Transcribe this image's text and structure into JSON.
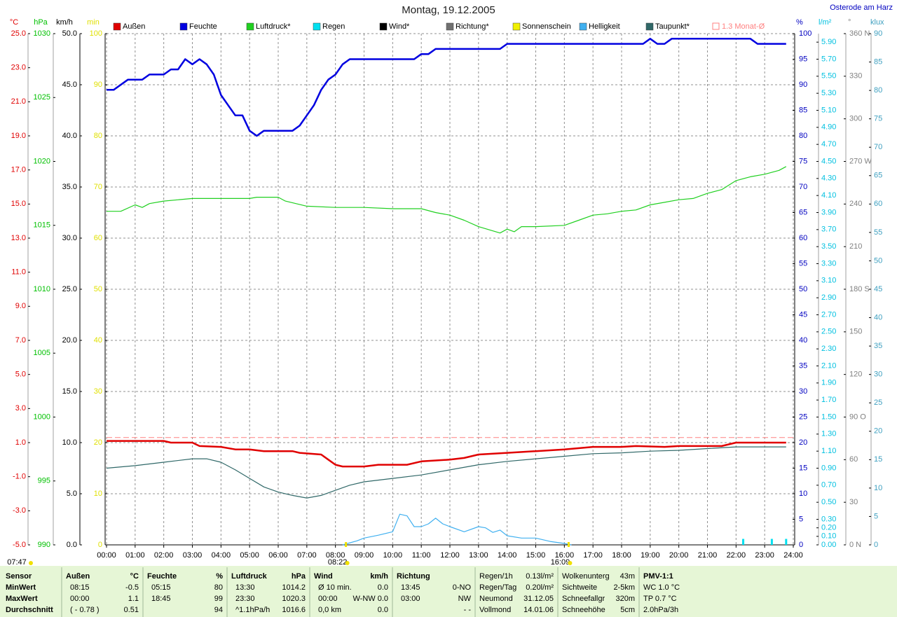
{
  "header": {
    "title": "Montag, 19.12.2005",
    "location": "Osterode am Harz"
  },
  "chart_data": {
    "type": "line",
    "grid": true,
    "xlim": [
      0,
      24
    ],
    "xticks": [
      {
        "value": 0,
        "label": "00:00"
      },
      {
        "value": 1,
        "label": "01:00"
      },
      {
        "value": 2,
        "label": "02:00"
      },
      {
        "value": 3,
        "label": "03:00"
      },
      {
        "value": 4,
        "label": "04:00"
      },
      {
        "value": 5,
        "label": "05:00"
      },
      {
        "value": 6,
        "label": "06:00"
      },
      {
        "value": 7,
        "label": "07:00"
      },
      {
        "value": 8,
        "label": "08:00"
      },
      {
        "value": 9,
        "label": "09:00"
      },
      {
        "value": 10,
        "label": "10:00"
      },
      {
        "value": 11,
        "label": "11:00"
      },
      {
        "value": 12,
        "label": "12:00"
      },
      {
        "value": 13,
        "label": "13:00"
      },
      {
        "value": 14,
        "label": "14:00"
      },
      {
        "value": 15,
        "label": "15:00"
      },
      {
        "value": 16,
        "label": "16:00"
      },
      {
        "value": 17,
        "label": "17:00"
      },
      {
        "value": 18,
        "label": "18:00"
      },
      {
        "value": 19,
        "label": "19:00"
      },
      {
        "value": 20,
        "label": "20:00"
      },
      {
        "value": 21,
        "label": "21:00"
      },
      {
        "value": 22,
        "label": "22:00"
      },
      {
        "value": 23,
        "label": "23:00"
      },
      {
        "value": 24,
        "label": "24:00"
      }
    ],
    "axes": {
      "temp": {
        "label": "°C",
        "color": "#e00000",
        "lim": [
          -5,
          25
        ],
        "ticks": [
          {
            "value": 25,
            "label": "25.0"
          },
          {
            "value": 23,
            "label": "23.0"
          },
          {
            "value": 21,
            "label": "21.0"
          },
          {
            "value": 19,
            "label": "19.0"
          },
          {
            "value": 17,
            "label": "17.0"
          },
          {
            "value": 15,
            "label": "15.0"
          },
          {
            "value": 13,
            "label": "13.0"
          },
          {
            "value": 11,
            "label": "11.0"
          },
          {
            "value": 9,
            "label": "9.0"
          },
          {
            "value": 7,
            "label": "7.0"
          },
          {
            "value": 5,
            "label": "5.0"
          },
          {
            "value": 3,
            "label": "3.0"
          },
          {
            "value": 1,
            "label": "1.0"
          },
          {
            "value": -1,
            "label": "-1.0"
          },
          {
            "value": -3,
            "label": "-3.0"
          },
          {
            "value": -5,
            "label": "-5.0"
          }
        ]
      },
      "press": {
        "label": "hPa",
        "color": "#00c000",
        "lim": [
          990,
          1030
        ],
        "ticks": [
          1030,
          1025,
          1020,
          1015,
          1010,
          1005,
          1000,
          995,
          990
        ]
      },
      "wind": {
        "label": "km/h",
        "color": "#000000",
        "lim": [
          0,
          50
        ],
        "ticks": [
          {
            "value": 50,
            "label": "50.0"
          },
          {
            "value": 45,
            "label": "45.0"
          },
          {
            "value": 40,
            "label": "40.0"
          },
          {
            "value": 35,
            "label": "35.0"
          },
          {
            "value": 30,
            "label": "30.0"
          },
          {
            "value": 25,
            "label": "25.0"
          },
          {
            "value": 20,
            "label": "20.0"
          },
          {
            "value": 15,
            "label": "15.0"
          },
          {
            "value": 10,
            "label": "10.0"
          },
          {
            "value": 5,
            "label": "5.0"
          },
          {
            "value": 0,
            "label": "0.0"
          }
        ]
      },
      "sunmin": {
        "label": "min",
        "color": "#e0e000",
        "lim": [
          0,
          100
        ],
        "ticks": [
          100,
          90,
          80,
          70,
          60,
          50,
          40,
          30,
          20,
          10,
          0
        ]
      },
      "hum": {
        "label": "%",
        "color": "#0000c0",
        "lim": [
          0,
          100
        ],
        "ticks": [
          100,
          95,
          90,
          85,
          80,
          75,
          70,
          65,
          60,
          55,
          50,
          45,
          40,
          35,
          30,
          25,
          20,
          15,
          10,
          5,
          0
        ]
      },
      "rain": {
        "label": "l/m²",
        "color": "#00c0e0",
        "lim": [
          0,
          6
        ],
        "ticks": [
          {
            "value": 5.9,
            "label": "5.90"
          },
          {
            "value": 5.7,
            "label": "5.70"
          },
          {
            "value": 5.5,
            "label": "5.50"
          },
          {
            "value": 5.3,
            "label": "5.30"
          },
          {
            "value": 5.1,
            "label": "5.10"
          },
          {
            "value": 4.9,
            "label": "4.90"
          },
          {
            "value": 4.7,
            "label": "4.70"
          },
          {
            "value": 4.5,
            "label": "4.50"
          },
          {
            "value": 4.3,
            "label": "4.30"
          },
          {
            "value": 4.1,
            "label": "4.10"
          },
          {
            "value": 3.9,
            "label": "3.90"
          },
          {
            "value": 3.7,
            "label": "3.70"
          },
          {
            "value": 3.5,
            "label": "3.50"
          },
          {
            "value": 3.3,
            "label": "3.30"
          },
          {
            "value": 3.1,
            "label": "3.10"
          },
          {
            "value": 2.9,
            "label": "2.90"
          },
          {
            "value": 2.7,
            "label": "2.70"
          },
          {
            "value": 2.5,
            "label": "2.50"
          },
          {
            "value": 2.3,
            "label": "2.30"
          },
          {
            "value": 2.1,
            "label": "2.10"
          },
          {
            "value": 1.9,
            "label": "1.90"
          },
          {
            "value": 1.7,
            "label": "1.70"
          },
          {
            "value": 1.5,
            "label": "1.50"
          },
          {
            "value": 1.3,
            "label": "1.30"
          },
          {
            "value": 1.1,
            "label": "1.10"
          },
          {
            "value": 0.9,
            "label": "0.90"
          },
          {
            "value": 0.7,
            "label": "0.70"
          },
          {
            "value": 0.5,
            "label": "0.50"
          },
          {
            "value": 0.3,
            "label": "0.30"
          },
          {
            "value": 0.2,
            "label": "0.20"
          },
          {
            "value": 0.1,
            "label": "0.10"
          },
          {
            "value": 0,
            "label": "0.00"
          }
        ]
      },
      "dir": {
        "label": "°",
        "color": "#808080",
        "lim": [
          0,
          360
        ],
        "ticks": [
          {
            "value": 360,
            "label": "360 N"
          },
          330,
          300,
          {
            "value": 270,
            "label": "270 W"
          },
          240,
          210,
          {
            "value": 180,
            "label": "180 S"
          },
          150,
          120,
          {
            "value": 90,
            "label": "90 O"
          },
          60,
          30,
          {
            "value": 0,
            "label": "0 N"
          }
        ]
      },
      "lux": {
        "label": "klux",
        "color": "#40a0c0",
        "lim": [
          0,
          90
        ],
        "ticks": [
          90,
          85,
          80,
          75,
          70,
          65,
          60,
          55,
          50,
          45,
          40,
          35,
          30,
          25,
          20,
          15,
          10,
          5,
          0
        ]
      }
    },
    "series": [
      {
        "name": "Außen",
        "color": "#e00000",
        "axis": "temp",
        "kind": "line",
        "x": [
          0,
          2,
          2.25,
          3,
          3.25,
          4,
          4.5,
          5,
          5.5,
          6.5,
          6.75,
          7.5,
          7.75,
          8,
          8.25,
          9,
          9.5,
          10.5,
          11,
          12,
          12.5,
          13,
          14,
          15,
          16,
          17,
          18,
          18.5,
          19.5,
          20,
          21.5,
          22,
          23,
          23.75
        ],
        "values": [
          1.1,
          1.1,
          1.0,
          1.0,
          0.8,
          0.75,
          0.6,
          0.6,
          0.5,
          0.5,
          0.4,
          0.3,
          0.0,
          -0.3,
          -0.4,
          -0.4,
          -0.3,
          -0.3,
          -0.1,
          0.0,
          0.1,
          0.3,
          0.4,
          0.5,
          0.6,
          0.75,
          0.75,
          0.8,
          0.75,
          0.8,
          0.8,
          1.0,
          1.0,
          1.0
        ]
      },
      {
        "name": "Feuchte",
        "color": "#0000e0",
        "axis": "hum",
        "kind": "line",
        "x": [
          0,
          0.25,
          0.75,
          1.25,
          1.5,
          2,
          2.25,
          2.5,
          2.75,
          3,
          3.25,
          3.5,
          3.75,
          4,
          4.25,
          4.5,
          4.75,
          5,
          5.25,
          5.5,
          6.5,
          6.75,
          7,
          7.25,
          7.5,
          7.75,
          8,
          8.25,
          8.5,
          10.75,
          11,
          11.25,
          11.5,
          13.75,
          14,
          18.75,
          19,
          19.25,
          19.5,
          19.75,
          22.5,
          22.75,
          23.75
        ],
        "values": [
          89,
          89,
          91,
          91,
          92,
          92,
          93,
          93,
          95,
          94,
          95,
          94,
          92,
          88,
          86,
          84,
          84,
          81,
          80,
          81,
          81,
          82,
          84,
          86,
          89,
          91,
          92,
          94,
          95,
          95,
          96,
          96,
          97,
          97,
          98,
          98,
          99,
          98,
          98,
          99,
          99,
          98,
          98
        ]
      },
      {
        "name": "Luftdruck*",
        "color": "#20d020",
        "axis": "press",
        "kind": "line",
        "x": [
          0,
          0.5,
          1,
          1.25,
          1.5,
          2,
          3,
          4,
          5,
          5.25,
          6,
          6.25,
          7,
          8,
          9,
          10,
          11,
          11.5,
          12,
          12.5,
          13,
          13.75,
          14,
          14.25,
          14.5,
          15,
          16,
          16.5,
          17,
          17.5,
          18,
          18.5,
          19,
          19.5,
          20,
          20.5,
          21,
          21.5,
          22,
          22.5,
          23,
          23.5,
          23.75
        ],
        "values": [
          1016.1,
          1016.1,
          1016.6,
          1016.4,
          1016.7,
          1016.9,
          1017.1,
          1017.1,
          1017.1,
          1017.2,
          1017.2,
          1016.9,
          1016.5,
          1016.4,
          1016.4,
          1016.3,
          1016.3,
          1016.0,
          1015.8,
          1015.4,
          1014.9,
          1014.4,
          1014.7,
          1014.5,
          1014.9,
          1014.9,
          1015.0,
          1015.4,
          1015.8,
          1015.9,
          1016.1,
          1016.2,
          1016.6,
          1016.8,
          1017.0,
          1017.1,
          1017.5,
          1017.8,
          1018.5,
          1018.8,
          1019.0,
          1019.3,
          1019.6
        ]
      },
      {
        "name": "Regen",
        "color": "#00e0f0",
        "axis": "rain",
        "kind": "bar",
        "x": [
          22.25,
          23.25,
          23.75
        ],
        "values": [
          0.07,
          0.07,
          0.07
        ]
      },
      {
        "name": "Wind*",
        "color": "#000000"
      },
      {
        "name": "Richtung*",
        "color": "#707070"
      },
      {
        "name": "Sonnenschein",
        "color": "#f0f000"
      },
      {
        "name": "Helligkeit",
        "color": "#40b0f0",
        "axis": "lux",
        "kind": "line",
        "x": [
          8.25,
          8.75,
          9,
          9.5,
          10,
          10.25,
          10.5,
          10.75,
          11,
          11.25,
          11.5,
          11.75,
          12,
          12.5,
          13,
          13.25,
          13.5,
          13.75,
          14,
          14.5,
          15,
          15.5,
          16,
          16.25
        ],
        "values": [
          0,
          0.7,
          1.2,
          1.7,
          2.3,
          5.4,
          5.1,
          3.2,
          3.2,
          3.7,
          4.7,
          3.7,
          3.2,
          2.3,
          3.2,
          3.0,
          2.2,
          2.6,
          1.6,
          1.2,
          1.2,
          0.6,
          0.25,
          0
        ]
      },
      {
        "name": "Taupunkt*",
        "color": "#306868",
        "axis": "temp",
        "kind": "line",
        "x": [
          0,
          1,
          2,
          3,
          3.5,
          4,
          4.5,
          5,
          5.5,
          6,
          6.5,
          7,
          7.5,
          8,
          8.5,
          9,
          10,
          11,
          12,
          13,
          14,
          15,
          16,
          17,
          18,
          19,
          20,
          21,
          22,
          23,
          23.75
        ],
        "values": [
          -0.5,
          -0.35,
          -0.15,
          0.05,
          0.05,
          -0.15,
          -0.6,
          -1.1,
          -1.6,
          -1.9,
          -2.1,
          -2.25,
          -2.1,
          -1.8,
          -1.5,
          -1.3,
          -1.1,
          -0.9,
          -0.6,
          -0.3,
          -0.1,
          0.05,
          0.2,
          0.35,
          0.4,
          0.5,
          0.55,
          0.65,
          0.75,
          0.75,
          0.75
        ]
      },
      {
        "name": "1.3 Monat-Ø",
        "color": "#ff8080",
        "axis": "temp",
        "kind": "hline",
        "value": 1.3
      }
    ],
    "sun": {
      "dawn": "07:47",
      "sunrise": "08:22",
      "sunset": "16:09"
    }
  },
  "table": {
    "labels": [
      "Sensor",
      "MinWert",
      "MaxWert",
      "Durchschnitt"
    ],
    "groups": [
      {
        "title": "Außen",
        "unit": "°C",
        "rows": [
          [
            "08:15",
            "-0.5"
          ],
          [
            "00:00",
            "1.1"
          ],
          [
            "( - 0.78 )",
            "0.51"
          ]
        ]
      },
      {
        "title": "Feuchte",
        "unit": "%",
        "rows": [
          [
            "05:15",
            "80"
          ],
          [
            "18:45",
            "99"
          ],
          [
            null,
            "94"
          ]
        ]
      },
      {
        "title": "Luftdruck",
        "unit": "hPa",
        "rows": [
          [
            "13:30",
            "1014.2"
          ],
          [
            "23:30",
            "1020.3"
          ],
          [
            "^1.1hPa/h",
            "1016.6"
          ]
        ]
      },
      {
        "title": "Wind",
        "unit": "km/h",
        "rows": [
          [
            "Ø 10 min.",
            "0.0"
          ],
          [
            "00:00",
            "W-NW 0.0"
          ],
          [
            "0,0 km",
            "0.0"
          ]
        ]
      },
      {
        "title": "Richtung",
        "rows": [
          [
            "13:45",
            "0-NO"
          ],
          [
            "03:00",
            "NW"
          ],
          [
            null,
            "- -"
          ]
        ]
      }
    ],
    "extra": [
      {
        "rows": [
          [
            "Regen/1h",
            "0.13l/m²"
          ],
          [
            "Regen/Tag",
            "0.20l/m²"
          ],
          [
            "Neumond",
            "31.12.05"
          ],
          [
            "Vollmond",
            "14.01.06"
          ]
        ]
      },
      {
        "rows": [
          [
            "Wolkenunterg",
            "43m"
          ],
          [
            "Sichtweite",
            "2-5km"
          ],
          [
            "Schneefallgr",
            "320m"
          ],
          [
            "Schneehöhe",
            "5cm"
          ]
        ]
      },
      {
        "rows": [
          [
            "PMV-1:1"
          ],
          [
            "WC 1.0 °C"
          ],
          [
            "TP 0.7 °C"
          ],
          [
            "2.0hPa/3h"
          ]
        ]
      }
    ]
  }
}
